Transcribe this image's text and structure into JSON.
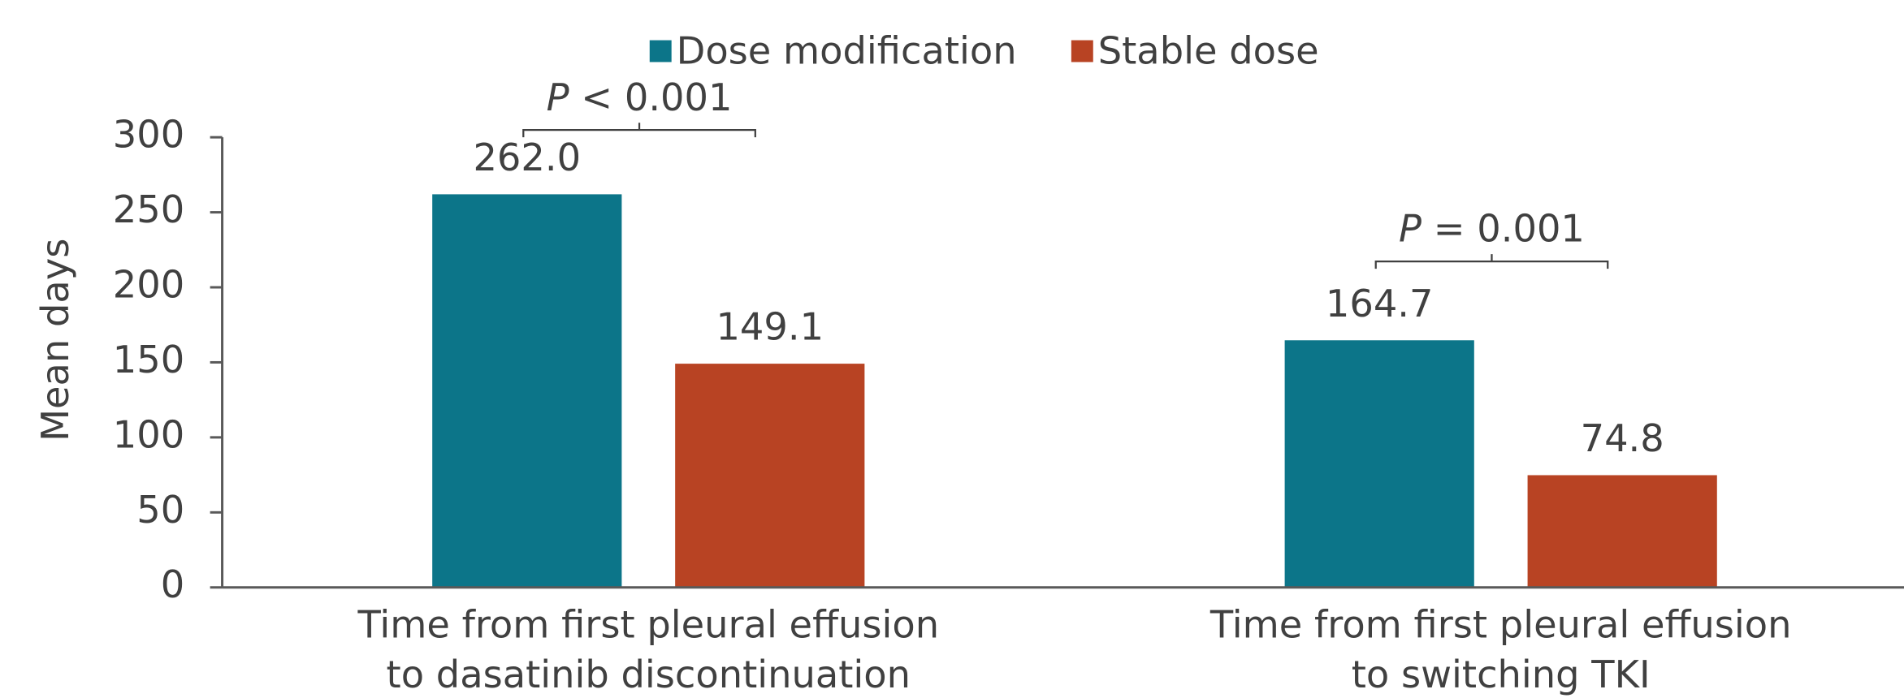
{
  "chart_data": {
    "type": "bar",
    "y_label": "Mean days",
    "categories": [
      [
        "Time from first pleural effusion",
        "to dasatinib discontinuation"
      ],
      [
        "Time from first pleural effusion",
        "to switching TKI"
      ]
    ],
    "series": [
      {
        "name": "Dose modification",
        "color": "#0c7589",
        "values": [
          262.0,
          164.7
        ],
        "value_labels": [
          "262.0",
          "164.7"
        ]
      },
      {
        "name": "Stable dose",
        "color": "#b84323",
        "values": [
          149.1,
          74.8
        ],
        "value_labels": [
          "149.1",
          "74.8"
        ]
      }
    ],
    "annotations": [
      {
        "symbol": "P",
        "text": "< 0.001"
      },
      {
        "symbol": "P",
        "text": "= 0.001"
      }
    ],
    "ylim": [
      0,
      300
    ],
    "yticks": [
      0,
      50,
      100,
      150,
      200,
      250,
      300
    ],
    "legend": "top"
  }
}
